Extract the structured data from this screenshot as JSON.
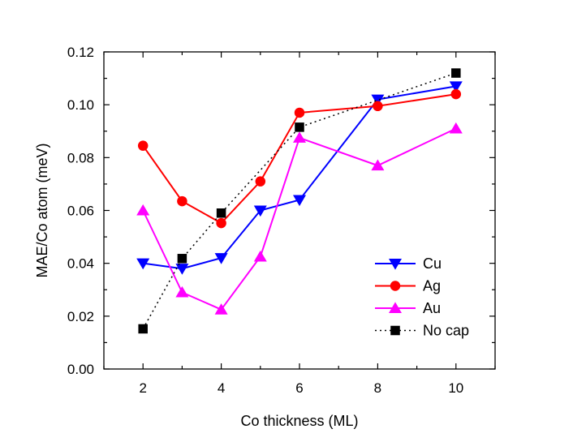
{
  "chart_data": {
    "type": "line",
    "xlabel": "Co thickness (ML)",
    "ylabel": "MAE/Co atom (meV)",
    "xlim": [
      1,
      11
    ],
    "ylim": [
      0,
      0.12
    ],
    "x_ticks": [
      2,
      4,
      6,
      8,
      10
    ],
    "y_ticks": [
      0.0,
      0.02,
      0.04,
      0.06,
      0.08,
      0.1,
      0.12
    ],
    "x_tick_labels": [
      "2",
      "4",
      "6",
      "8",
      "10"
    ],
    "y_tick_labels": [
      "0.00",
      "0.02",
      "0.04",
      "0.06",
      "0.08",
      "0.10",
      "0.12"
    ],
    "grid": false,
    "legend_position": "bottom-right",
    "series": [
      {
        "name": "Cu",
        "color": "#0000ff",
        "marker": "triangle-down",
        "line": "solid",
        "x": [
          2,
          3,
          4,
          5,
          6,
          8,
          10
        ],
        "y": [
          0.04,
          0.038,
          0.042,
          0.06,
          0.064,
          0.102,
          0.107
        ]
      },
      {
        "name": "Ag",
        "color": "#ff0000",
        "marker": "circle",
        "line": "solid",
        "x": [
          2,
          3,
          4,
          5,
          6,
          8,
          10
        ],
        "y": [
          0.0845,
          0.0635,
          0.0552,
          0.071,
          0.097,
          0.0995,
          0.104
        ]
      },
      {
        "name": "Au",
        "color": "#ff00ff",
        "marker": "triangle-up",
        "line": "solid",
        "x": [
          2,
          3,
          4,
          5,
          6,
          8,
          10
        ],
        "y": [
          0.06,
          0.029,
          0.0225,
          0.0425,
          0.0875,
          0.077,
          0.091
        ]
      },
      {
        "name": "No cap",
        "color": "#000000",
        "marker": "square",
        "line": "dotted",
        "x": [
          2,
          3,
          4,
          6,
          10
        ],
        "y": [
          0.0152,
          0.0418,
          0.059,
          0.0915,
          0.112
        ]
      }
    ]
  }
}
